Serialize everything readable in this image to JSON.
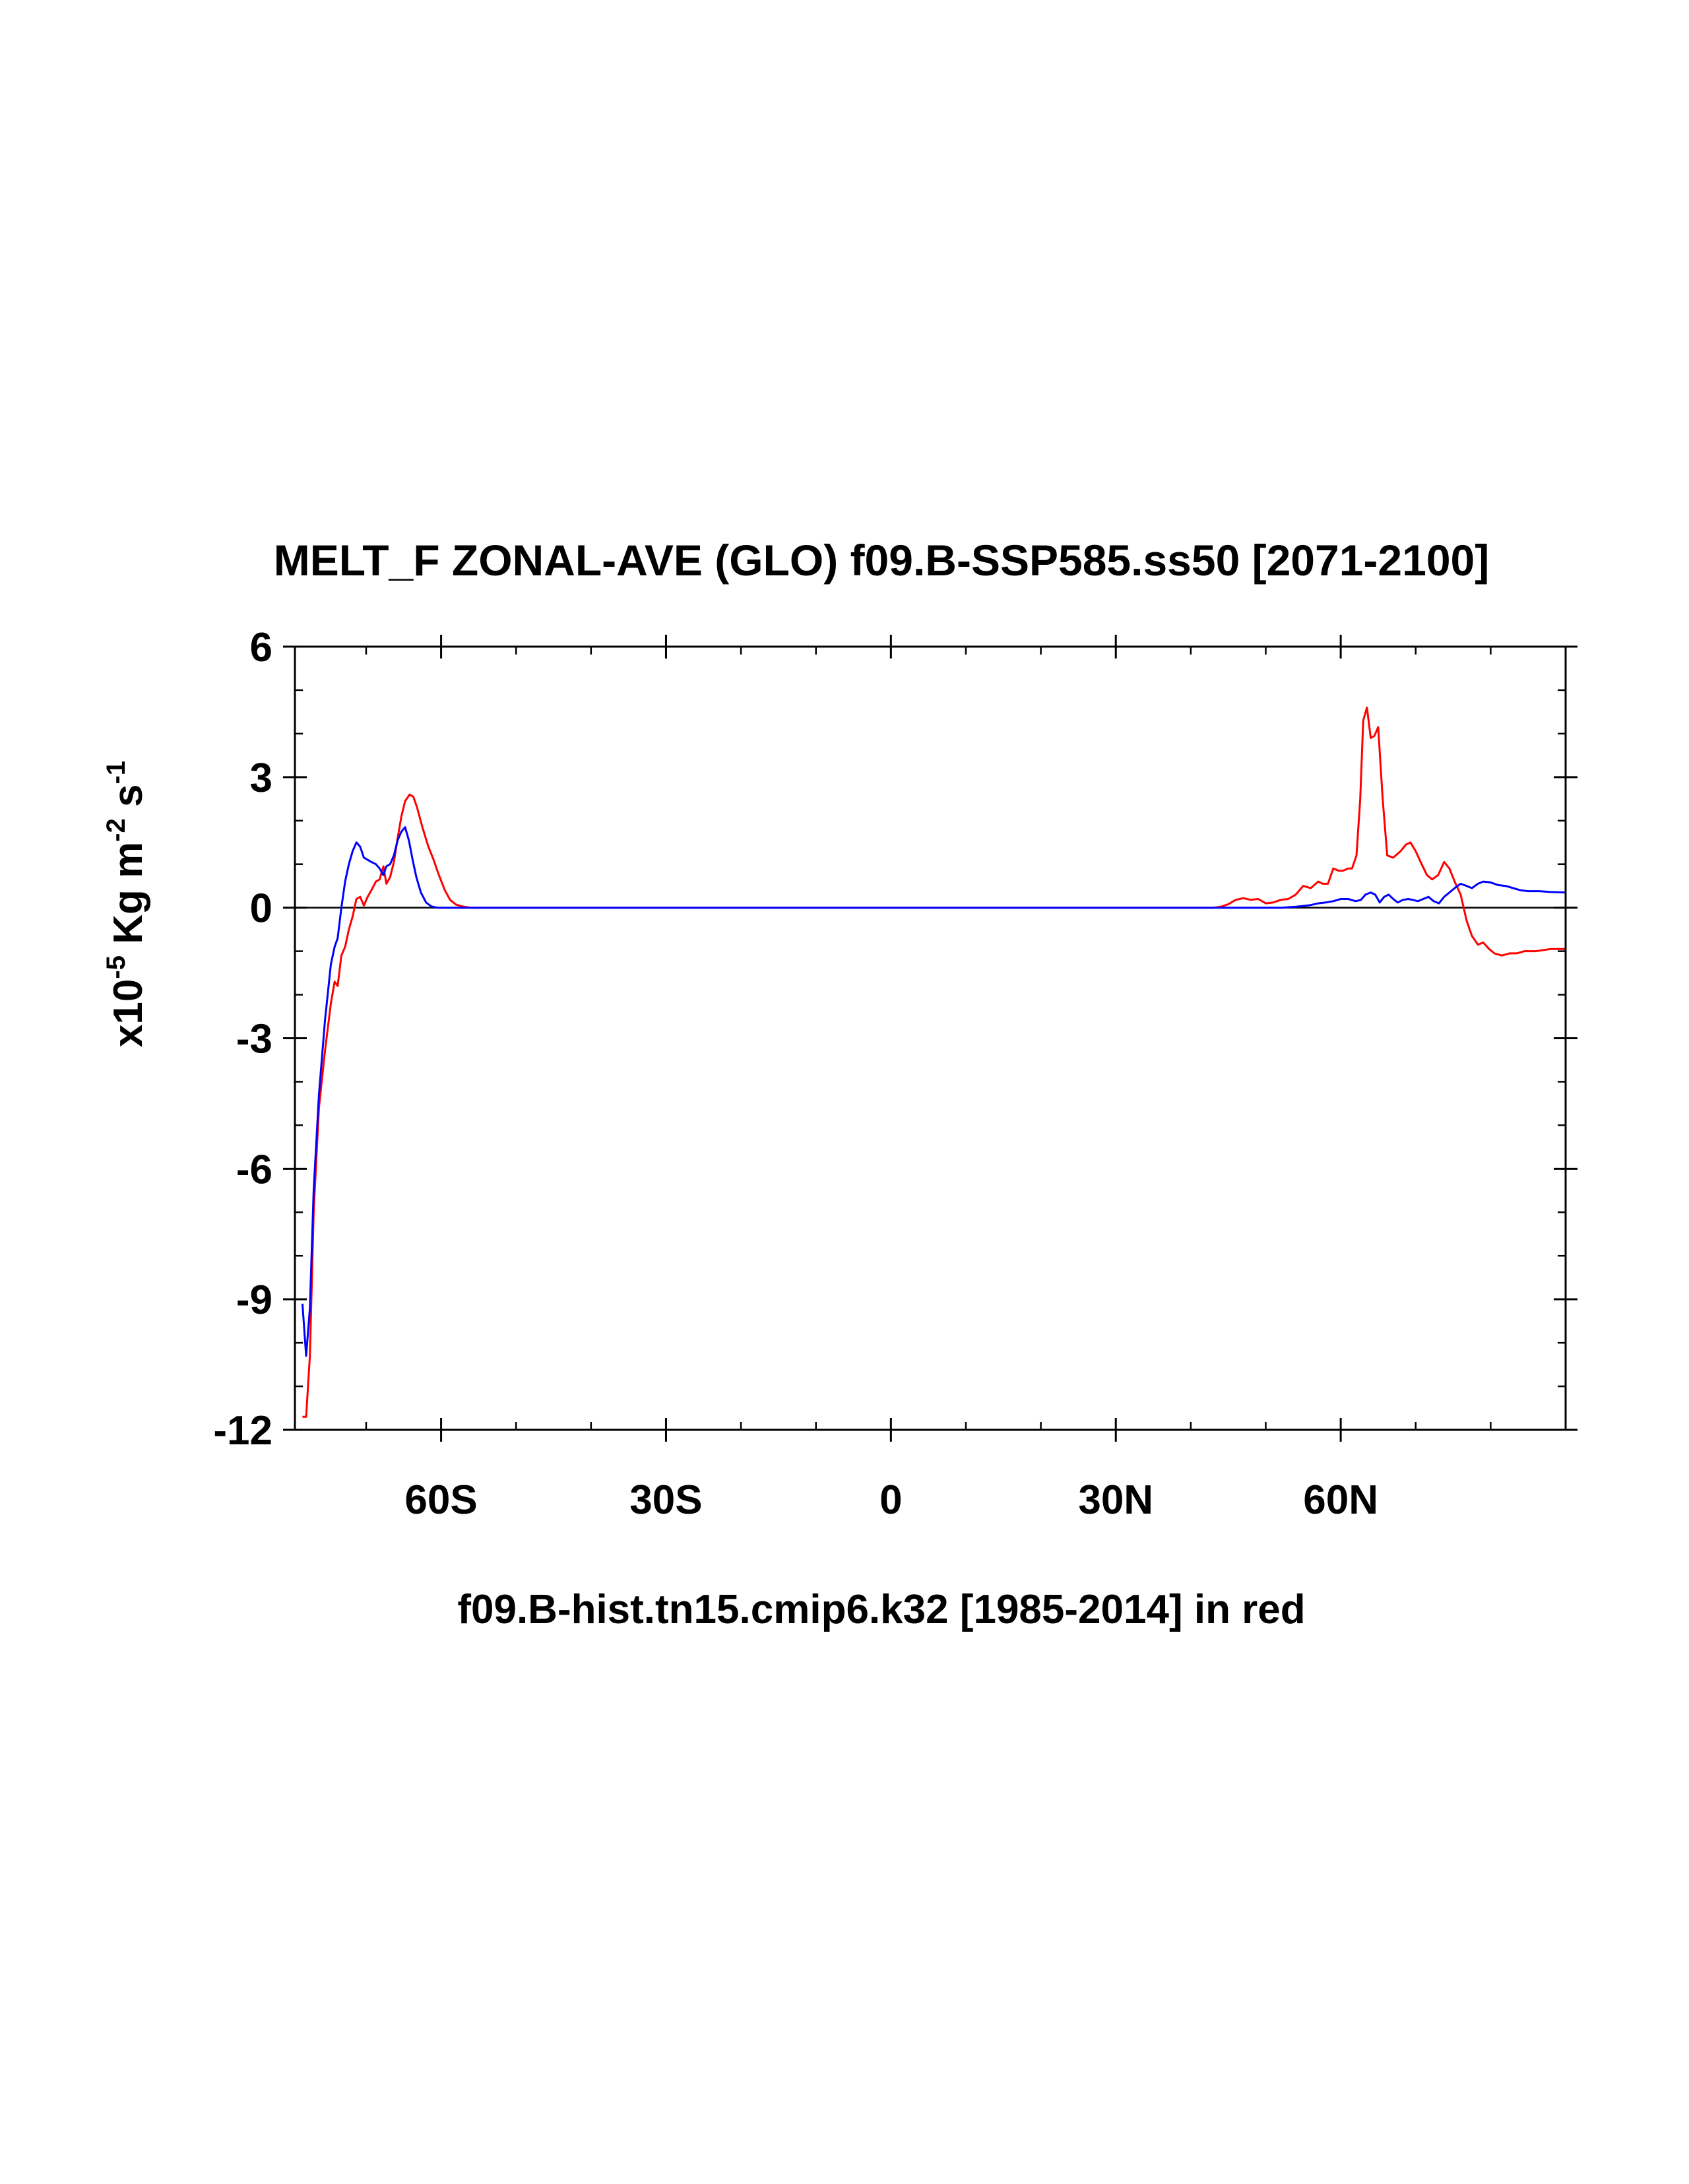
{
  "chart_data": {
    "type": "line",
    "title": "MELT_F ZONAL-AVE (GLO) f09.B-SSP585.ss50 [2071-2100]",
    "xlabel": "f09.B-hist.tn15.cmip6.k32 [1985-2014] in red",
    "ylabel": {
      "prefix": "x10",
      "exp1": "-5",
      "mid": " Kg m",
      "exp2": "-2",
      "mid2": " s",
      "exp3": "-1"
    },
    "xlim": [
      -79.5,
      90
    ],
    "ylim": [
      -12,
      6
    ],
    "yticks": [
      {
        "value": 6,
        "label": "6"
      },
      {
        "value": 3,
        "label": "3"
      },
      {
        "value": 0,
        "label": "0"
      },
      {
        "value": -3,
        "label": "-3"
      },
      {
        "value": -6,
        "label": "-6"
      },
      {
        "value": -9,
        "label": "-9"
      },
      {
        "value": -12,
        "label": "-12"
      }
    ],
    "xticks": [
      {
        "value": -60,
        "label": "60S"
      },
      {
        "value": -30,
        "label": "30S"
      },
      {
        "value": 0,
        "label": "0"
      },
      {
        "value": 30,
        "label": "30N"
      },
      {
        "value": 60,
        "label": "60N"
      }
    ],
    "reference_line": 0,
    "series": [
      {
        "color": "#ff0000",
        "points": [
          [
            -78.5,
            -11.7
          ],
          [
            -78.0,
            -11.7
          ],
          [
            -77.5,
            -10.3
          ],
          [
            -77.0,
            -7.0
          ],
          [
            -76.3,
            -4.6
          ],
          [
            -75.5,
            -3.3
          ],
          [
            -74.7,
            -2.2
          ],
          [
            -74.2,
            -1.7
          ],
          [
            -73.8,
            -1.8
          ],
          [
            -73.3,
            -1.1
          ],
          [
            -72.8,
            -0.9
          ],
          [
            -72.3,
            -0.5
          ],
          [
            -71.8,
            -0.2
          ],
          [
            -71.3,
            0.2
          ],
          [
            -70.8,
            0.25
          ],
          [
            -70.3,
            0.05
          ],
          [
            -69.8,
            0.25
          ],
          [
            -69.3,
            0.4
          ],
          [
            -68.7,
            0.6
          ],
          [
            -68.2,
            0.65
          ],
          [
            -67.7,
            0.95
          ],
          [
            -67.3,
            0.55
          ],
          [
            -66.8,
            0.7
          ],
          [
            -66.3,
            1.05
          ],
          [
            -65.8,
            1.6
          ],
          [
            -65.3,
            2.1
          ],
          [
            -64.8,
            2.45
          ],
          [
            -64.2,
            2.6
          ],
          [
            -63.7,
            2.55
          ],
          [
            -63.2,
            2.3
          ],
          [
            -62.5,
            1.85
          ],
          [
            -61.7,
            1.4
          ],
          [
            -61.0,
            1.1
          ],
          [
            -60.3,
            0.75
          ],
          [
            -59.5,
            0.4
          ],
          [
            -58.8,
            0.18
          ],
          [
            -58.0,
            0.07
          ],
          [
            -57.0,
            0.02
          ],
          [
            -56.0,
            0.0
          ],
          [
            -40.0,
            0.0
          ],
          [
            -20.0,
            0.0
          ],
          [
            0.0,
            0.0
          ],
          [
            20.0,
            0.0
          ],
          [
            40.0,
            0.0
          ],
          [
            43.0,
            0.0
          ],
          [
            44.0,
            0.02
          ],
          [
            45.0,
            0.08
          ],
          [
            46.0,
            0.18
          ],
          [
            47.0,
            0.22
          ],
          [
            48.0,
            0.18
          ],
          [
            49.0,
            0.2
          ],
          [
            50.0,
            0.1
          ],
          [
            51.0,
            0.12
          ],
          [
            52.0,
            0.18
          ],
          [
            53.0,
            0.2
          ],
          [
            54.0,
            0.3
          ],
          [
            55.0,
            0.5
          ],
          [
            56.0,
            0.45
          ],
          [
            57.0,
            0.6
          ],
          [
            57.6,
            0.55
          ],
          [
            58.3,
            0.55
          ],
          [
            59.0,
            0.9
          ],
          [
            59.7,
            0.85
          ],
          [
            60.3,
            0.85
          ],
          [
            61.0,
            0.9
          ],
          [
            61.5,
            0.9
          ],
          [
            62.1,
            1.2
          ],
          [
            62.6,
            2.5
          ],
          [
            63.0,
            4.3
          ],
          [
            63.5,
            4.6
          ],
          [
            64.0,
            3.9
          ],
          [
            64.5,
            3.95
          ],
          [
            65.0,
            4.15
          ],
          [
            65.6,
            2.5
          ],
          [
            66.2,
            1.2
          ],
          [
            67.0,
            1.15
          ],
          [
            68.0,
            1.3
          ],
          [
            68.7,
            1.45
          ],
          [
            69.3,
            1.5
          ],
          [
            70.0,
            1.3
          ],
          [
            70.8,
            1.0
          ],
          [
            71.5,
            0.75
          ],
          [
            72.2,
            0.65
          ],
          [
            73.0,
            0.75
          ],
          [
            73.8,
            1.05
          ],
          [
            74.5,
            0.9
          ],
          [
            75.2,
            0.6
          ],
          [
            76.0,
            0.3
          ],
          [
            76.8,
            -0.3
          ],
          [
            77.5,
            -0.65
          ],
          [
            78.3,
            -0.85
          ],
          [
            79.0,
            -0.8
          ],
          [
            79.8,
            -0.95
          ],
          [
            80.5,
            -1.05
          ],
          [
            81.5,
            -1.1
          ],
          [
            82.5,
            -1.05
          ],
          [
            83.5,
            -1.05
          ],
          [
            84.5,
            -1.0
          ],
          [
            86.0,
            -1.0
          ],
          [
            88.0,
            -0.95
          ],
          [
            90.0,
            -0.95
          ]
        ]
      },
      {
        "color": "#0000ff",
        "points": [
          [
            -78.5,
            -9.1
          ],
          [
            -78.0,
            -10.3
          ],
          [
            -77.5,
            -9.2
          ],
          [
            -77.0,
            -6.5
          ],
          [
            -76.3,
            -4.3
          ],
          [
            -75.5,
            -2.6
          ],
          [
            -74.7,
            -1.3
          ],
          [
            -74.2,
            -0.9
          ],
          [
            -73.8,
            -0.7
          ],
          [
            -73.3,
            0.0
          ],
          [
            -72.8,
            0.6
          ],
          [
            -72.3,
            1.0
          ],
          [
            -71.8,
            1.3
          ],
          [
            -71.3,
            1.5
          ],
          [
            -70.8,
            1.4
          ],
          [
            -70.3,
            1.15
          ],
          [
            -69.8,
            1.1
          ],
          [
            -69.3,
            1.05
          ],
          [
            -68.7,
            1.0
          ],
          [
            -68.2,
            0.9
          ],
          [
            -67.7,
            0.75
          ],
          [
            -67.3,
            0.95
          ],
          [
            -66.8,
            1.0
          ],
          [
            -66.3,
            1.2
          ],
          [
            -65.8,
            1.55
          ],
          [
            -65.3,
            1.75
          ],
          [
            -64.8,
            1.85
          ],
          [
            -64.3,
            1.55
          ],
          [
            -63.8,
            1.1
          ],
          [
            -63.3,
            0.7
          ],
          [
            -62.7,
            0.35
          ],
          [
            -62.0,
            0.12
          ],
          [
            -61.3,
            0.03
          ],
          [
            -60.5,
            0.0
          ],
          [
            -50.0,
            0.0
          ],
          [
            -30.0,
            0.0
          ],
          [
            0.0,
            0.0
          ],
          [
            30.0,
            0.0
          ],
          [
            50.0,
            0.0
          ],
          [
            52.0,
            0.0
          ],
          [
            54.0,
            0.02
          ],
          [
            55.0,
            0.04
          ],
          [
            56.0,
            0.06
          ],
          [
            57.0,
            0.1
          ],
          [
            58.0,
            0.12
          ],
          [
            59.0,
            0.15
          ],
          [
            60.0,
            0.2
          ],
          [
            61.0,
            0.2
          ],
          [
            62.0,
            0.15
          ],
          [
            62.7,
            0.18
          ],
          [
            63.3,
            0.3
          ],
          [
            64.0,
            0.35
          ],
          [
            64.6,
            0.3
          ],
          [
            65.2,
            0.12
          ],
          [
            65.8,
            0.25
          ],
          [
            66.4,
            0.3
          ],
          [
            67.0,
            0.2
          ],
          [
            67.6,
            0.12
          ],
          [
            68.3,
            0.18
          ],
          [
            69.0,
            0.2
          ],
          [
            69.6,
            0.18
          ],
          [
            70.3,
            0.15
          ],
          [
            71.0,
            0.2
          ],
          [
            71.7,
            0.25
          ],
          [
            72.4,
            0.15
          ],
          [
            73.1,
            0.1
          ],
          [
            73.8,
            0.25
          ],
          [
            74.5,
            0.35
          ],
          [
            75.2,
            0.45
          ],
          [
            76.0,
            0.55
          ],
          [
            76.8,
            0.5
          ],
          [
            77.5,
            0.45
          ],
          [
            78.3,
            0.55
          ],
          [
            79.0,
            0.6
          ],
          [
            80.0,
            0.58
          ],
          [
            81.0,
            0.52
          ],
          [
            82.0,
            0.5
          ],
          [
            83.0,
            0.45
          ],
          [
            84.0,
            0.4
          ],
          [
            85.0,
            0.38
          ],
          [
            86.5,
            0.38
          ],
          [
            88.0,
            0.36
          ],
          [
            90.0,
            0.35
          ]
        ]
      }
    ]
  }
}
